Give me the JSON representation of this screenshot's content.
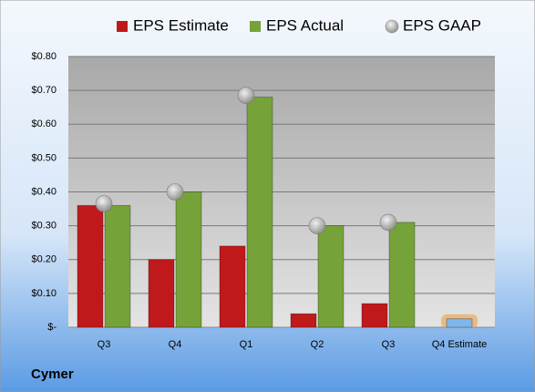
{
  "chart_data": {
    "type": "bar",
    "company": "Cymer",
    "categories": [
      "Q3",
      "Q4",
      "Q1",
      "Q2",
      "Q3",
      "Q4 Estimate"
    ],
    "series": [
      {
        "name": "EPS Estimate",
        "color": "#c0191c",
        "values": [
          0.36,
          0.2,
          0.24,
          0.04,
          0.07,
          0.025
        ]
      },
      {
        "name": "EPS Actual",
        "color": "#76a23a",
        "values": [
          0.36,
          0.4,
          0.68,
          0.3,
          0.31,
          null
        ]
      },
      {
        "name": "EPS GAAP",
        "color": "#a9a9a9",
        "marker": "circle",
        "values": [
          0.365,
          0.4,
          0.685,
          0.3,
          0.31,
          null
        ]
      }
    ],
    "forecast_color": "#7fb6ec",
    "forecast_glow": "#f0a040",
    "ylim": [
      0,
      0.8
    ],
    "yticks": [
      {
        "value": 0,
        "label": "$-"
      },
      {
        "value": 0.1,
        "label": "$0.10"
      },
      {
        "value": 0.2,
        "label": "$0.20"
      },
      {
        "value": 0.3,
        "label": "$0.30"
      },
      {
        "value": 0.4,
        "label": "$0.40"
      },
      {
        "value": 0.5,
        "label": "$0.50"
      },
      {
        "value": 0.6,
        "label": "$0.60"
      },
      {
        "value": 0.7,
        "label": "$0.70"
      },
      {
        "value": 0.8,
        "label": "$0.80"
      }
    ],
    "grid": true
  }
}
